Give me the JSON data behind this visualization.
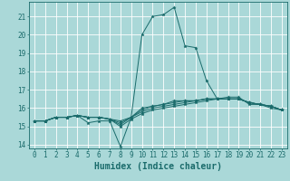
{
  "title": "",
  "xlabel": "Humidex (Indice chaleur)",
  "background_color": "#aad8d8",
  "grid_color": "#ffffff",
  "line_color": "#1a6b6b",
  "xlim": [
    -0.5,
    23.5
  ],
  "ylim": [
    13.8,
    21.8
  ],
  "yticks": [
    14,
    15,
    16,
    17,
    18,
    19,
    20,
    21
  ],
  "xticks": [
    0,
    1,
    2,
    3,
    4,
    5,
    6,
    7,
    8,
    9,
    10,
    11,
    12,
    13,
    14,
    15,
    16,
    17,
    18,
    19,
    20,
    21,
    22,
    23
  ],
  "series": [
    [
      15.3,
      15.3,
      15.5,
      15.5,
      15.6,
      15.2,
      15.3,
      15.3,
      13.9,
      15.5,
      20.0,
      21.0,
      21.1,
      21.5,
      19.4,
      19.3,
      17.5,
      16.5,
      16.6,
      16.6,
      16.2,
      16.2,
      16.0,
      15.9
    ],
    [
      15.3,
      15.3,
      15.5,
      15.5,
      15.6,
      15.5,
      15.5,
      15.4,
      15.0,
      15.4,
      15.7,
      15.9,
      16.0,
      16.1,
      16.2,
      16.3,
      16.4,
      16.5,
      16.5,
      16.5,
      16.3,
      16.2,
      16.1,
      15.9
    ],
    [
      15.3,
      15.3,
      15.5,
      15.5,
      15.6,
      15.5,
      15.5,
      15.4,
      15.1,
      15.5,
      15.8,
      16.0,
      16.1,
      16.2,
      16.3,
      16.4,
      16.5,
      16.5,
      16.5,
      16.5,
      16.3,
      16.2,
      16.1,
      15.9
    ],
    [
      15.3,
      15.3,
      15.5,
      15.5,
      15.6,
      15.5,
      15.5,
      15.4,
      15.2,
      15.5,
      15.9,
      16.1,
      16.2,
      16.3,
      16.4,
      16.4,
      16.5,
      16.5,
      16.5,
      16.5,
      16.3,
      16.2,
      16.1,
      15.9
    ],
    [
      15.3,
      15.3,
      15.5,
      15.5,
      15.6,
      15.5,
      15.5,
      15.4,
      15.3,
      15.5,
      16.0,
      16.1,
      16.2,
      16.4,
      16.4,
      16.4,
      16.5,
      16.5,
      16.5,
      16.5,
      16.3,
      16.2,
      16.1,
      15.9
    ]
  ],
  "xlabel_fontsize": 7,
  "tick_fontsize": 5.5
}
